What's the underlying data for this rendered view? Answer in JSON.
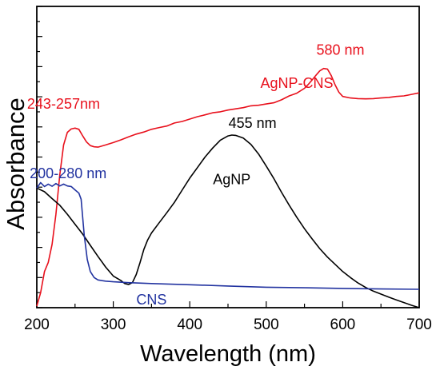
{
  "chart_data": {
    "type": "line",
    "title": "",
    "xlabel": "Wavelength (nm)",
    "ylabel": "Absorbance",
    "xlim": [
      200,
      700
    ],
    "ylim": [
      0,
      1
    ],
    "x_ticks": [
      200,
      300,
      400,
      500,
      600,
      700
    ],
    "x_tick_labels": [
      "200",
      "300",
      "400",
      "500",
      "600",
      "700"
    ],
    "y_tick_labels_shown": false,
    "grid": false,
    "legend": "none",
    "series": [
      {
        "name": "AgNP-CNS",
        "color": "#e8101c",
        "x": [
          200,
          205,
          210,
          215,
          220,
          225,
          230,
          235,
          240,
          245,
          250,
          255,
          260,
          265,
          270,
          275,
          280,
          290,
          300,
          310,
          320,
          330,
          340,
          350,
          360,
          370,
          380,
          390,
          400,
          410,
          420,
          430,
          440,
          450,
          460,
          470,
          480,
          490,
          500,
          510,
          520,
          530,
          540,
          550,
          555,
          560,
          565,
          570,
          575,
          580,
          585,
          590,
          595,
          600,
          610,
          620,
          630,
          640,
          650,
          660,
          670,
          680,
          690,
          700
        ],
        "y": [
          0.005,
          0.05,
          0.12,
          0.15,
          0.21,
          0.31,
          0.44,
          0.54,
          0.582,
          0.593,
          0.596,
          0.592,
          0.57,
          0.55,
          0.538,
          0.534,
          0.533,
          0.54,
          0.548,
          0.557,
          0.567,
          0.576,
          0.583,
          0.592,
          0.598,
          0.603,
          0.613,
          0.618,
          0.626,
          0.634,
          0.64,
          0.647,
          0.65,
          0.656,
          0.66,
          0.664,
          0.67,
          0.672,
          0.676,
          0.68,
          0.69,
          0.703,
          0.712,
          0.728,
          0.741,
          0.756,
          0.771,
          0.786,
          0.794,
          0.792,
          0.77,
          0.74,
          0.715,
          0.701,
          0.696,
          0.694,
          0.693,
          0.694,
          0.696,
          0.698,
          0.701,
          0.703,
          0.708,
          0.713
        ]
      },
      {
        "name": "AgNP",
        "color": "#000000",
        "x": [
          200,
          210,
          220,
          230,
          240,
          250,
          260,
          270,
          280,
          290,
          300,
          310,
          315,
          320,
          325,
          330,
          335,
          340,
          345,
          350,
          360,
          370,
          380,
          390,
          400,
          410,
          420,
          430,
          440,
          450,
          455,
          460,
          470,
          480,
          490,
          500,
          510,
          520,
          530,
          540,
          550,
          560,
          570,
          580,
          590,
          600,
          610,
          620,
          630,
          640,
          650,
          660,
          670,
          680,
          690,
          700
        ],
        "y": [
          0.397,
          0.385,
          0.362,
          0.34,
          0.31,
          0.277,
          0.244,
          0.207,
          0.17,
          0.135,
          0.105,
          0.09,
          0.08,
          0.077,
          0.083,
          0.11,
          0.15,
          0.193,
          0.225,
          0.248,
          0.282,
          0.315,
          0.35,
          0.39,
          0.43,
          0.465,
          0.5,
          0.53,
          0.556,
          0.57,
          0.573,
          0.572,
          0.563,
          0.542,
          0.51,
          0.47,
          0.428,
          0.383,
          0.34,
          0.3,
          0.262,
          0.228,
          0.196,
          0.168,
          0.144,
          0.12,
          0.1,
          0.082,
          0.067,
          0.055,
          0.045,
          0.035,
          0.026,
          0.017,
          0.008,
          0.0
        ]
      },
      {
        "name": "CNS",
        "color": "#2233a0",
        "x": [
          200,
          205,
          210,
          215,
          220,
          225,
          230,
          235,
          240,
          245,
          250,
          255,
          258,
          262,
          266,
          270,
          275,
          280,
          290,
          300,
          320,
          350,
          400,
          450,
          500,
          550,
          600,
          650,
          700
        ],
        "y": [
          0.397,
          0.415,
          0.402,
          0.41,
          0.403,
          0.412,
          0.404,
          0.41,
          0.404,
          0.402,
          0.391,
          0.38,
          0.36,
          0.24,
          0.16,
          0.12,
          0.1,
          0.092,
          0.088,
          0.086,
          0.083,
          0.08,
          0.076,
          0.072,
          0.068,
          0.066,
          0.064,
          0.062,
          0.061
        ]
      }
    ],
    "annotations": [
      {
        "text": "243-257nm",
        "color": "#e8101c",
        "x": 235,
        "y": 0.66
      },
      {
        "text": "580 nm",
        "color": "#e8101c",
        "x": 597,
        "y": 0.84
      },
      {
        "text": "AgNP-CNS",
        "color": "#e8101c",
        "x": 540,
        "y": 0.73
      },
      {
        "text": "455 nm",
        "color": "#000000",
        "x": 482,
        "y": 0.597
      },
      {
        "text": "AgNP",
        "color": "#000000",
        "x": 455,
        "y": 0.41
      },
      {
        "text": "200-280 nm",
        "color": "#2233a0",
        "x": 241,
        "y": 0.43
      },
      {
        "text": "CNS",
        "color": "#2233a0",
        "x": 350,
        "y": 0.01
      }
    ]
  }
}
